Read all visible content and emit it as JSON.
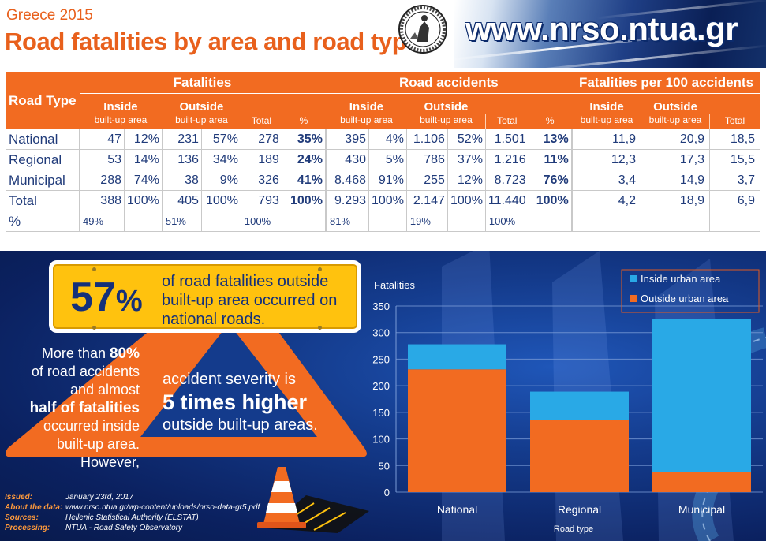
{
  "header": {
    "subtitle": "Greece 2015",
    "title": "Road fatalities by area and road type",
    "url": "www.nrso.ntua.gr"
  },
  "tables": {
    "road_type_label": "Road Type",
    "groups": {
      "fatalities": "Fatalities",
      "accidents": "Road accidents",
      "per100": "Fatalities per 100 accidents"
    },
    "sub": {
      "inside": "Inside",
      "outside": "Outside",
      "area": "built-up area",
      "total": "Total",
      "pct": "%"
    },
    "rows": [
      {
        "label": "National",
        "fat": [
          "47",
          "12%",
          "231",
          "57%",
          "278",
          "35%"
        ],
        "acc": [
          "395",
          "4%",
          "1.106",
          "52%",
          "1.501",
          "13%"
        ],
        "per": [
          "11,9",
          "20,9",
          "18,5"
        ]
      },
      {
        "label": "Regional",
        "fat": [
          "53",
          "14%",
          "136",
          "34%",
          "189",
          "24%"
        ],
        "acc": [
          "430",
          "5%",
          "786",
          "37%",
          "1.216",
          "11%"
        ],
        "per": [
          "12,3",
          "17,3",
          "15,5"
        ]
      },
      {
        "label": "Municipal",
        "fat": [
          "288",
          "74%",
          "38",
          "9%",
          "326",
          "41%"
        ],
        "acc": [
          "8.468",
          "91%",
          "255",
          "12%",
          "8.723",
          "76%"
        ],
        "per": [
          "3,4",
          "14,9",
          "3,7"
        ]
      },
      {
        "label": "Total",
        "fat": [
          "388",
          "100%",
          "405",
          "100%",
          "793",
          "100%"
        ],
        "acc": [
          "9.293",
          "100%",
          "2.147",
          "100%",
          "11.440",
          "100%"
        ],
        "per": [
          "4,2",
          "18,9",
          "6,9"
        ]
      }
    ],
    "pct_row": {
      "label": "%",
      "fat": [
        "49%",
        "",
        "51%",
        "",
        "100%",
        ""
      ],
      "acc": [
        "81%",
        "",
        "19%",
        "",
        "100%",
        ""
      ],
      "per": [
        "",
        "",
        ""
      ]
    }
  },
  "infographic": {
    "stat_big": "57",
    "stat_pct": "%",
    "stat_text": "of road fatalities outside built-up area occurred on national roads.",
    "orange_line1": "More than ",
    "orange_80": "80%",
    "orange_line2": "of road accidents",
    "orange_line3": "and almost",
    "orange_half": "half of fatalities",
    "orange_line4": "occurred inside",
    "orange_line5": "built-up area. However,",
    "sev_line1": "accident severity is",
    "sev_line2": "5 times higher",
    "sev_line3": "outside built-up areas."
  },
  "footer": [
    {
      "key": "Issued:",
      "value": "January 23rd, 2017"
    },
    {
      "key": "About the data:",
      "value": "www.nrso.ntua.gr/wp-content/uploads/nrso-data-gr5.pdf"
    },
    {
      "key": "Sources:",
      "value": "Hellenic Statistical Authority (ELSTAT)"
    },
    {
      "key": "Processing:",
      "value": "NTUA - Road Safety Observatory"
    }
  ],
  "colors": {
    "inside": "#29a9e6",
    "outside": "#f26b21",
    "navy": "#14307a",
    "yellow": "#ffc20e"
  },
  "chart_data": {
    "type": "bar",
    "stacked": true,
    "categories": [
      "National",
      "Regional",
      "Municipal"
    ],
    "series": [
      {
        "name": "Outside urban area",
        "values": [
          231,
          136,
          38
        ]
      },
      {
        "name": "Inside urban area",
        "values": [
          47,
          53,
          288
        ]
      }
    ],
    "title": "",
    "ylabel": "Fatalities",
    "xlabel": "Road type",
    "ylim": [
      0,
      350
    ],
    "yticks": [
      0,
      50,
      100,
      150,
      200,
      250,
      300,
      350
    ],
    "grid": true,
    "legend": "top-right"
  }
}
